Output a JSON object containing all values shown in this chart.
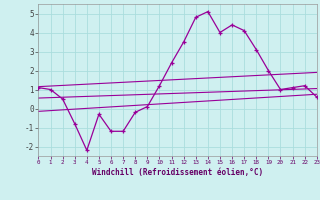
{
  "x": [
    0,
    1,
    2,
    3,
    4,
    5,
    6,
    7,
    8,
    9,
    10,
    11,
    12,
    13,
    14,
    15,
    16,
    17,
    18,
    19,
    20,
    21,
    22,
    23
  ],
  "windchill": [
    1.1,
    1.0,
    0.5,
    -0.8,
    -2.2,
    -0.3,
    -1.2,
    -1.2,
    -0.2,
    0.1,
    1.2,
    2.4,
    3.5,
    4.8,
    5.1,
    4.0,
    4.4,
    4.1,
    3.1,
    2.0,
    1.0,
    1.1,
    1.2,
    0.6
  ],
  "line1_y0": 1.15,
  "line1_y1": 1.9,
  "line2_y0": 0.55,
  "line2_y1": 1.05,
  "line3_y0": -0.15,
  "line3_y1": 0.75,
  "bg_color": "#cff0f0",
  "grid_color": "#aadddd",
  "line_color": "#990099",
  "xlabel": "Windchill (Refroidissement éolien,°C)",
  "ylim": [
    -2.5,
    5.5
  ],
  "xlim": [
    0,
    23
  ],
  "yticks": [
    -2,
    -1,
    0,
    1,
    2,
    3,
    4,
    5
  ]
}
